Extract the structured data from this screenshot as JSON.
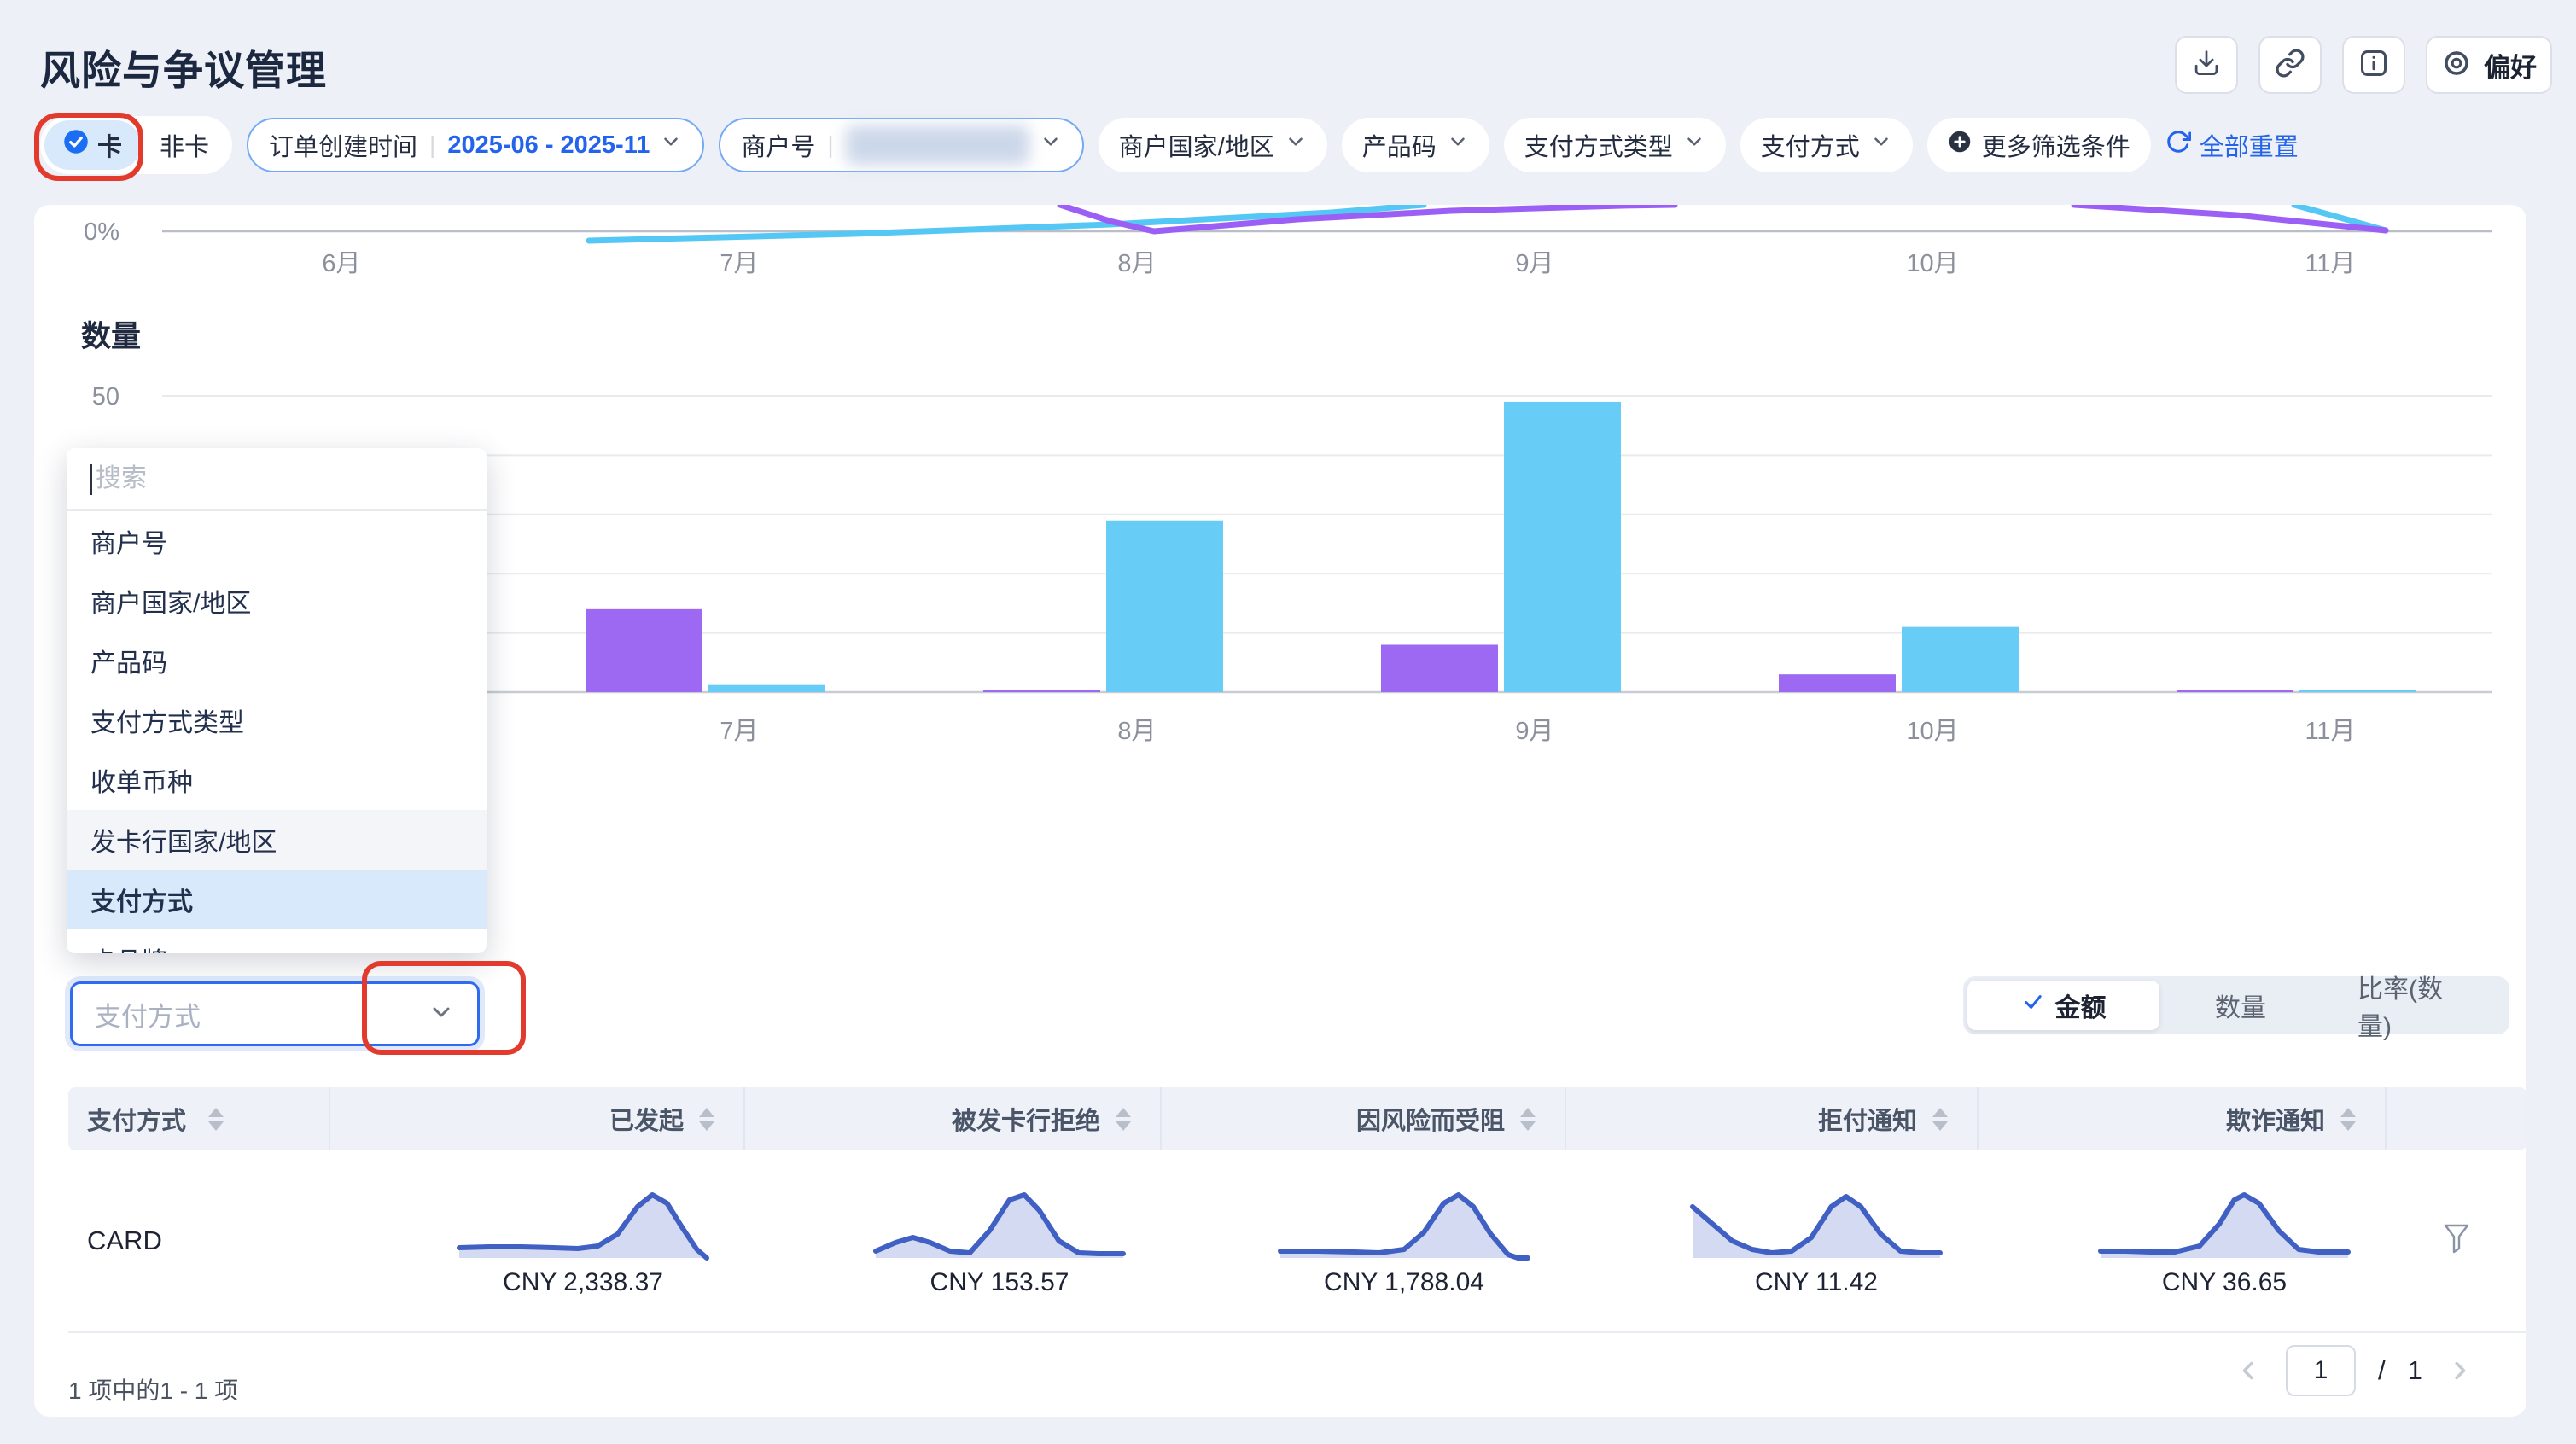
{
  "header": {
    "title": "风险与争议管理",
    "actions": {
      "download": "download",
      "copy_link": "copy-link",
      "info": "info",
      "preferences_label": "偏好"
    }
  },
  "filters": {
    "card_toggle": {
      "options": [
        {
          "label": "卡",
          "selected": true
        },
        {
          "label": "非卡",
          "selected": false
        }
      ]
    },
    "pills": [
      {
        "label": "订单创建时间",
        "value": "2025-06 - 2025-11",
        "active": true
      },
      {
        "label": "商户号",
        "value_redacted": true,
        "active": true
      },
      {
        "label": "商户国家/地区"
      },
      {
        "label": "产品码"
      },
      {
        "label": "支付方式类型"
      },
      {
        "label": "支付方式"
      }
    ],
    "more_label": "更多筛选条件",
    "reset_label": "全部重置"
  },
  "quantity_section": {
    "title": "数量"
  },
  "dropdown": {
    "search_placeholder": "搜索",
    "items": [
      {
        "label": "商户号"
      },
      {
        "label": "商户国家/地区"
      },
      {
        "label": "产品码"
      },
      {
        "label": "支付方式类型"
      },
      {
        "label": "收单币种"
      },
      {
        "label": "发卡行国家/地区",
        "hovered": true
      },
      {
        "label": "支付方式",
        "selected": true
      },
      {
        "label": "卡品牌",
        "clipped": true
      }
    ]
  },
  "select_field": {
    "placeholder": "支付方式"
  },
  "tabs": {
    "items": [
      {
        "label": "金额",
        "selected": true
      },
      {
        "label": "数量"
      },
      {
        "label": "比率(数量)"
      }
    ]
  },
  "chart_data": [
    {
      "type": "line",
      "id": "rate-trend-partial",
      "note": "chart partially scrolled out of view above panel; only region near 0% axis visible",
      "y_tick": "0%",
      "months": [
        "6月",
        "7月",
        "8月",
        "9月",
        "10月",
        "11月"
      ],
      "series": [
        {
          "name": "blue-rate",
          "color": "#55c7f4",
          "segments": [
            [
              [
                690,
                282
              ],
              [
                1000,
                274
              ],
              [
                1300,
                263
              ],
              [
                1560,
                249
              ],
              [
                1668,
                240
              ]
            ],
            [
              [
                2688,
                240
              ],
              [
                2795,
                270
              ]
            ]
          ]
        },
        {
          "name": "purple-rate",
          "color": "#9b5ff5",
          "segments": [
            [
              [
                1242,
                240
              ],
              [
                1300,
                259
              ],
              [
                1352,
                271
              ],
              [
                1520,
                257
              ],
              [
                1700,
                247
              ],
              [
                1900,
                241
              ],
              [
                1962,
                240
              ]
            ],
            [
              [
                2430,
                240
              ],
              [
                2620,
                252
              ],
              [
                2795,
                270
              ]
            ]
          ]
        }
      ]
    },
    {
      "type": "bar",
      "id": "quantity-by-month",
      "title": "数量",
      "ylim": [
        0,
        50
      ],
      "y_tick_labels": [
        "50"
      ],
      "grid_step": 10,
      "categories": [
        "6月",
        "7月",
        "8月",
        "9月",
        "10月",
        "11月"
      ],
      "series": [
        {
          "name": "purple-series",
          "color": "#9d68f2",
          "values": [
            null,
            14,
            0.4,
            8,
            3,
            0.4
          ]
        },
        {
          "name": "blue-series",
          "color": "#68cdf6",
          "values": [
            null,
            1.2,
            29,
            49,
            11,
            0.4
          ]
        }
      ],
      "note": "6月 bars hidden behind open dropdown panel"
    }
  ],
  "table": {
    "columns": [
      {
        "label": "支付方式",
        "sortable": true
      },
      {
        "label": "已发起",
        "sortable": true
      },
      {
        "label": "被发卡行拒绝",
        "sortable": true
      },
      {
        "label": "因风险而受阻",
        "sortable": true
      },
      {
        "label": "拒付通知",
        "sortable": true
      },
      {
        "label": "欺诈通知",
        "sortable": true
      }
    ],
    "rows": [
      {
        "payment_method": "CARD",
        "cells": [
          {
            "value": "CNY 2,338.37",
            "spark": [
              [
                0,
                34
              ],
              [
                12,
                33.5
              ],
              [
                25,
                33.5
              ],
              [
                38,
                34
              ],
              [
                48,
                34.5
              ],
              [
                56,
                33
              ],
              [
                64,
                26
              ],
              [
                72,
                10
              ],
              [
                78,
                3
              ],
              [
                84,
                8
              ],
              [
                90,
                22
              ],
              [
                96,
                35
              ],
              [
                100,
                40
              ]
            ]
          },
          {
            "value": "CNY 153.57",
            "spark": [
              [
                0,
                36
              ],
              [
                8,
                31
              ],
              [
                15,
                28
              ],
              [
                22,
                31
              ],
              [
                30,
                36
              ],
              [
                38,
                37
              ],
              [
                46,
                24
              ],
              [
                54,
                6
              ],
              [
                60,
                3
              ],
              [
                66,
                12
              ],
              [
                74,
                30
              ],
              [
                82,
                37
              ],
              [
                90,
                37.5
              ],
              [
                100,
                37.5
              ]
            ]
          },
          {
            "value": "CNY 1,788.04",
            "spark": [
              [
                0,
                36
              ],
              [
                15,
                36
              ],
              [
                30,
                36.5
              ],
              [
                40,
                37
              ],
              [
                50,
                35
              ],
              [
                58,
                25
              ],
              [
                66,
                8
              ],
              [
                72,
                3
              ],
              [
                78,
                10
              ],
              [
                85,
                26
              ],
              [
                92,
                38
              ],
              [
                96,
                40
              ],
              [
                100,
                40
              ]
            ]
          },
          {
            "value": "CNY 11.42",
            "spark": [
              [
                0,
                10
              ],
              [
                8,
                20
              ],
              [
                16,
                30
              ],
              [
                24,
                35
              ],
              [
                32,
                37
              ],
              [
                40,
                36
              ],
              [
                48,
                28
              ],
              [
                56,
                10
              ],
              [
                62,
                4
              ],
              [
                68,
                10
              ],
              [
                76,
                26
              ],
              [
                84,
                36
              ],
              [
                92,
                37
              ],
              [
                100,
                37
              ]
            ]
          },
          {
            "value": "CNY 36.65",
            "spark": [
              [
                0,
                36
              ],
              [
                10,
                36
              ],
              [
                20,
                36.5
              ],
              [
                30,
                36.5
              ],
              [
                40,
                33
              ],
              [
                48,
                20
              ],
              [
                54,
                6
              ],
              [
                58,
                3
              ],
              [
                64,
                8
              ],
              [
                72,
                24
              ],
              [
                80,
                35
              ],
              [
                88,
                36.5
              ],
              [
                100,
                36.5
              ]
            ]
          }
        ]
      }
    ]
  },
  "footer": {
    "range_text": "1 项中的1 - 1 项",
    "page_current": "1",
    "separator": "/",
    "page_total": "1"
  },
  "annotations": {
    "color": "#e23b2e",
    "targets": [
      "card-toggle-option",
      "payment-method-select-chevron"
    ]
  },
  "colors": {
    "accent_blue": "#2463eb",
    "bar_blue": "#68cdf6",
    "bar_purple": "#9d68f2",
    "spark_stroke": "#4160c4",
    "spark_fill": "rgba(96,122,205,0.28)",
    "annotation_red": "#e23b2e",
    "selected_bg": "#d7e9fb"
  }
}
